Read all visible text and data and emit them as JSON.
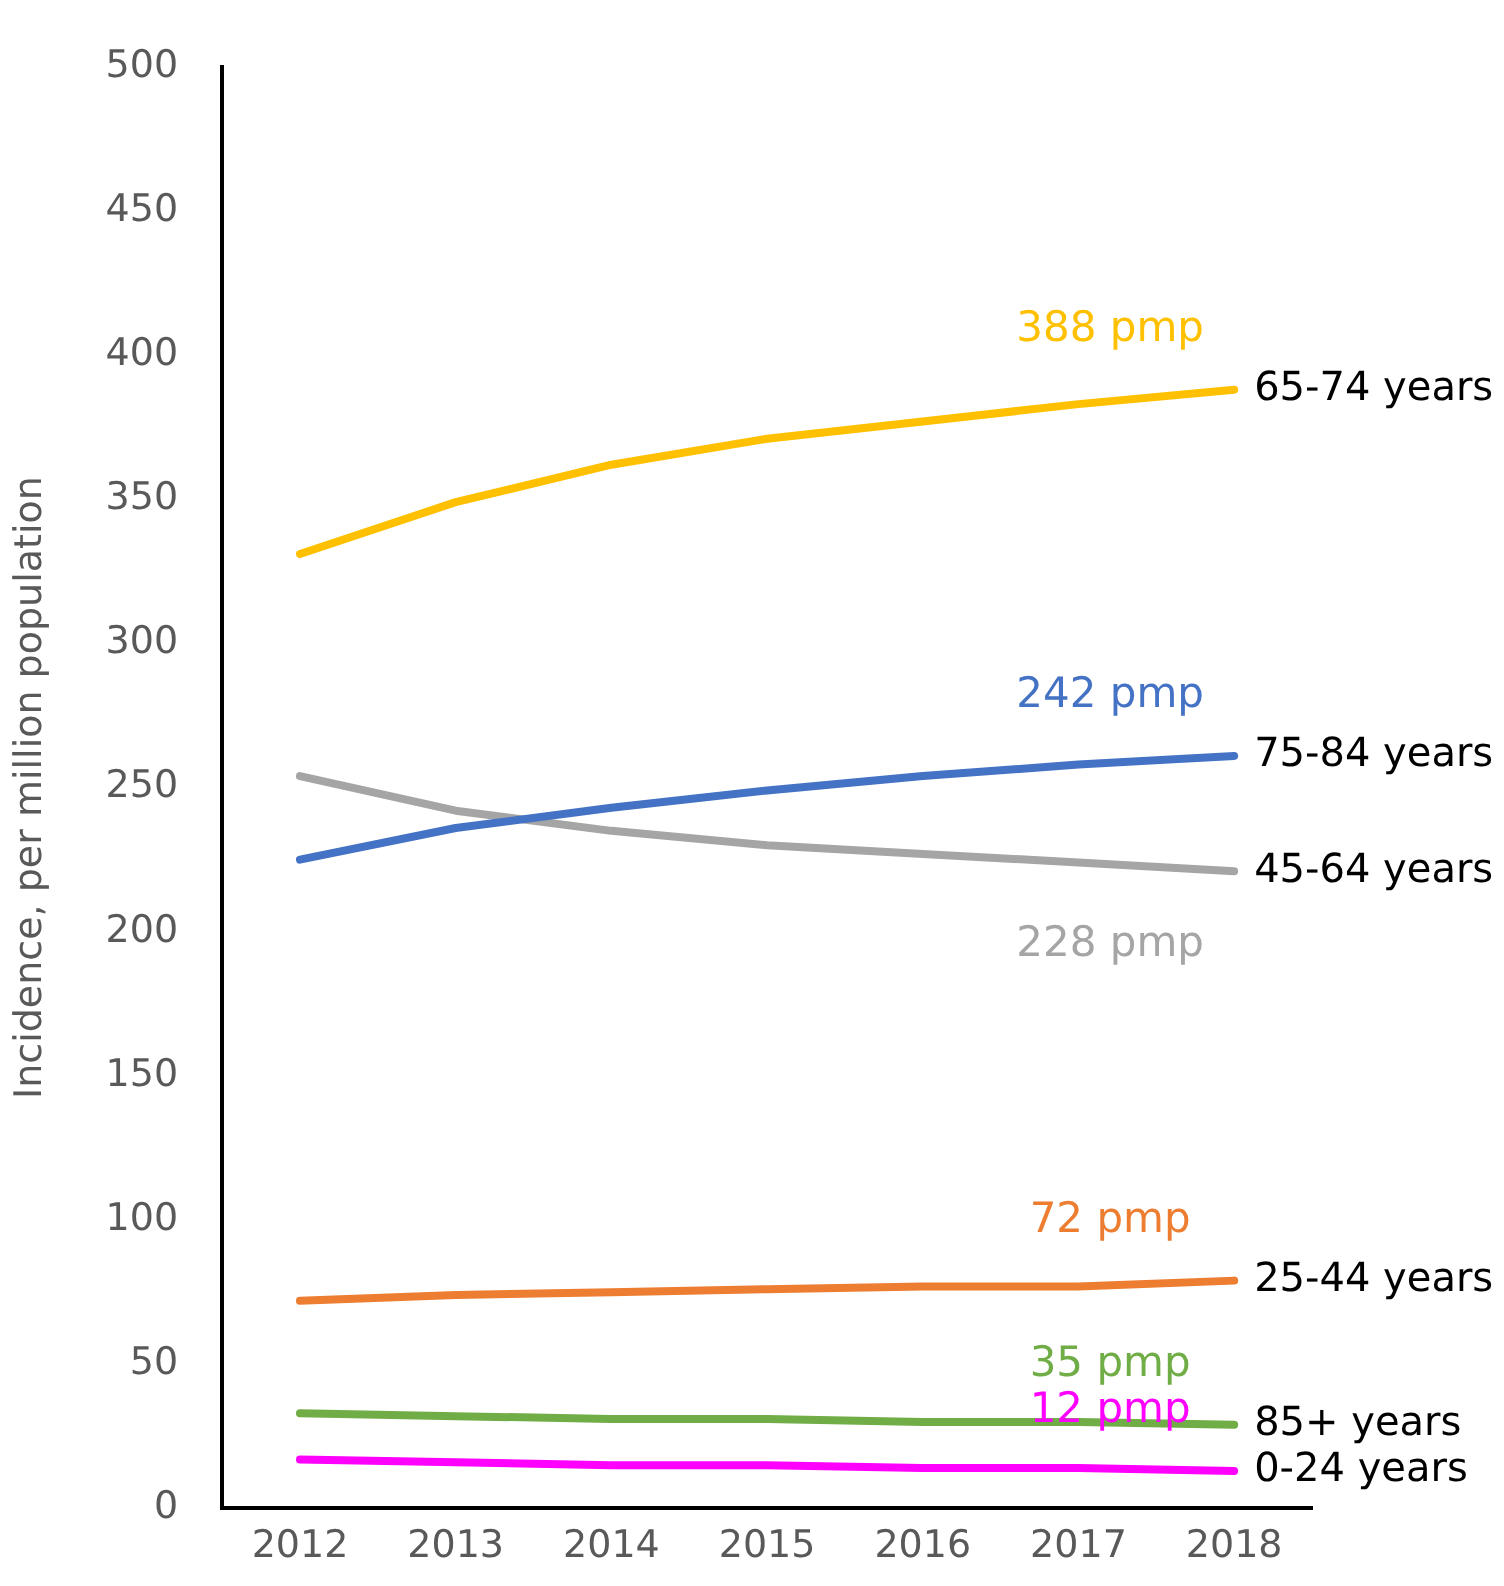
{
  "chart_data": {
    "type": "line",
    "ylabel": "Incidence, per million population",
    "x": [
      2012,
      2013,
      2014,
      2015,
      2016,
      2017,
      2018
    ],
    "series": [
      {
        "name": "65-74 years",
        "color": "#ffc000",
        "values": [
          331,
          349,
          362,
          371,
          377,
          383,
          388
        ]
      },
      {
        "name": "75-84 years",
        "color": "#4472c4",
        "values": [
          225,
          236,
          243,
          249,
          254,
          258,
          261
        ]
      },
      {
        "name": "45-64 years",
        "color": "#a5a5a5",
        "values": [
          254,
          242,
          235,
          230,
          227,
          224,
          221
        ]
      },
      {
        "name": "25-44 years",
        "color": "#ed7d31",
        "values": [
          72,
          74,
          75,
          76,
          77,
          77,
          79
        ]
      },
      {
        "name": "85+ years",
        "color": "#70ad47",
        "values": [
          33,
          32,
          31,
          31,
          30,
          30,
          29
        ]
      },
      {
        "name": "0-24 years",
        "color": "#ff00ff",
        "values": [
          17,
          16,
          15,
          15,
          14,
          14,
          13
        ]
      }
    ],
    "annotations": [
      "388 pmp",
      "242 pmp",
      "228 pmp",
      "72 pmp",
      "35 pmp",
      "12 pmp"
    ],
    "xlim": [
      2011.5,
      2018.5
    ],
    "xticks": [
      2012,
      2013,
      2014,
      2015,
      2016,
      2017,
      2018
    ],
    "ylim": [
      0,
      500
    ],
    "yticks": [
      0,
      50,
      100,
      150,
      200,
      250,
      300,
      350,
      400,
      450,
      500
    ],
    "grid": false,
    "legend": false,
    "marker": "none",
    "line_style": "solid"
  }
}
